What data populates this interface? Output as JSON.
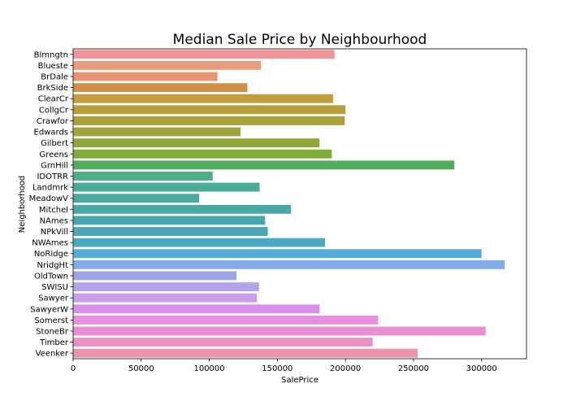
{
  "chart_data": {
    "type": "bar",
    "orientation": "horizontal",
    "title": "Median Sale Price by Neighbourhood",
    "xlabel": "SalePrice",
    "ylabel": "Neighborhood",
    "xlim": [
      0,
      333000
    ],
    "xticks": [
      0,
      50000,
      100000,
      150000,
      200000,
      250000,
      300000
    ],
    "xtick_labels": [
      "0",
      "50000",
      "100000",
      "150000",
      "200000",
      "250000",
      "300000"
    ],
    "grid": false,
    "legend": "none",
    "categories": [
      "Blmngtn",
      "Blueste",
      "BrDale",
      "BrkSide",
      "ClearCr",
      "CollgCr",
      "Crawfor",
      "Edwards",
      "Gilbert",
      "Greens",
      "GrnHill",
      "IDOTRR",
      "Landmrk",
      "MeadowV",
      "Mitchel",
      "NAmes",
      "NPkVill",
      "NWAmes",
      "NoRidge",
      "NridgHt",
      "OldTown",
      "SWISU",
      "Sawyer",
      "SawyerW",
      "Somerst",
      "StoneBr",
      "Timber",
      "Veenker"
    ],
    "values": [
      192000,
      138000,
      106000,
      128000,
      191000,
      200000,
      199500,
      123000,
      181000,
      190000,
      280000,
      102500,
      137000,
      92500,
      160000,
      141000,
      143000,
      185000,
      300000,
      317000,
      120000,
      136500,
      135000,
      181000,
      224000,
      303000,
      220000,
      253000
    ],
    "colors": [
      "#f0949a",
      "#ea9b7c",
      "#e69471",
      "#d19047",
      "#c49d3c",
      "#b69e3b",
      "#aba13a",
      "#a1a33b",
      "#90a63b",
      "#7dab3b",
      "#4fac5a",
      "#4dad85",
      "#4baa94",
      "#49a99d",
      "#49a8a6",
      "#4aa6ad",
      "#4ba7b5",
      "#4aaac5",
      "#55acd8",
      "#83aae6",
      "#9ca5e8",
      "#b3a4ea",
      "#c69ee9",
      "#d891e9",
      "#e68fe0",
      "#e88ed1",
      "#e991c1",
      "#ea94ae"
    ]
  }
}
